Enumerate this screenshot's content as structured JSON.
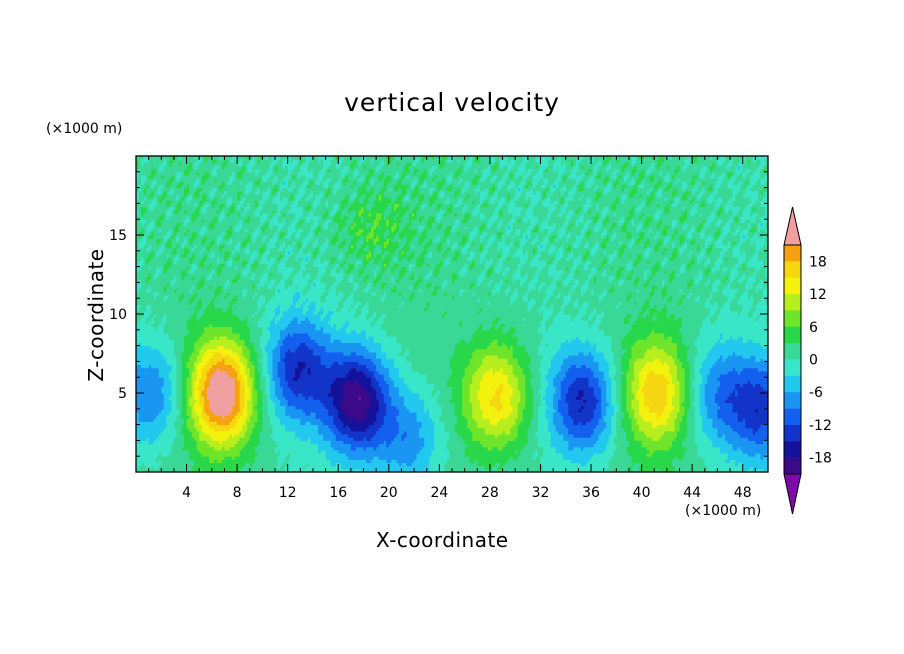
{
  "chart_data": {
    "type": "heatmap",
    "title": "vertical velocity",
    "xlabel": "X-coordinate",
    "ylabel": "Z-coordinate",
    "x_unit": "(×1000 m)",
    "y_unit": "(×1000 m)",
    "xlim": [
      0,
      50
    ],
    "ylim": [
      0,
      20
    ],
    "x_ticks": [
      4,
      8,
      12,
      16,
      20,
      24,
      28,
      32,
      36,
      40,
      44,
      48
    ],
    "y_ticks": [
      5,
      10,
      15
    ],
    "colorbar": {
      "tick_labels": [
        18,
        12,
        6,
        0,
        -6,
        -12,
        -18
      ],
      "range": [
        -21,
        21
      ],
      "step": 3,
      "extend": "both"
    },
    "cells": [
      {
        "x": 6.8,
        "z": 5.0,
        "w": 24
      },
      {
        "x": 12.8,
        "z": 6.5,
        "w": -15
      },
      {
        "x": 17.5,
        "z": 4.5,
        "w": -21
      },
      {
        "x": 21.6,
        "z": 2.0,
        "w": -9
      },
      {
        "x": 28.5,
        "z": 4.8,
        "w": 15
      },
      {
        "x": 35.3,
        "z": 4.5,
        "w": -16
      },
      {
        "x": 41.2,
        "z": 5.0,
        "w": 16
      },
      {
        "x": 46.0,
        "z": 5.0,
        "w": -9
      },
      {
        "x": 1.2,
        "z": 5.0,
        "w": -10
      },
      {
        "x": 49.5,
        "z": 4.0,
        "w": -13
      },
      {
        "x": 18.5,
        "z": 15.5,
        "w": 4
      }
    ]
  }
}
